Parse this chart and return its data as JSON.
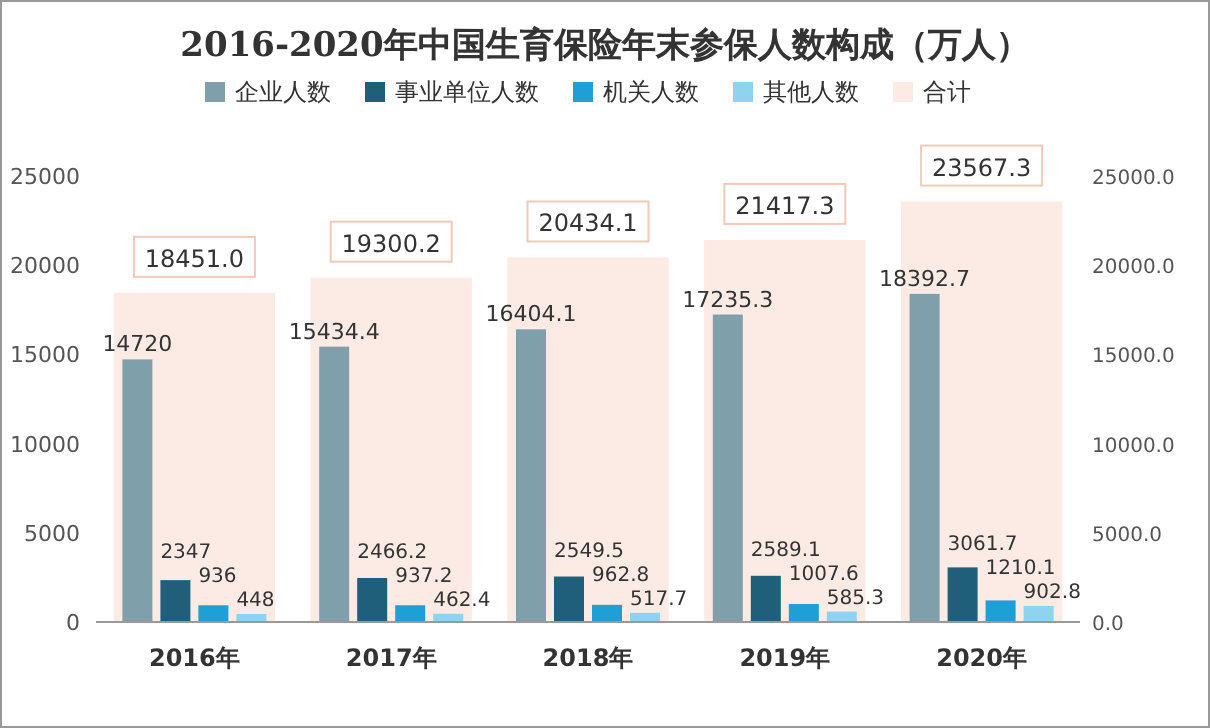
{
  "chart_data": {
    "type": "bar",
    "title": "2016-2020年中国生育保险年末参保人数构成（万人）",
    "categories": [
      "2016年",
      "2017年",
      "2018年",
      "2019年",
      "2020年"
    ],
    "series": [
      {
        "name": "企业人数",
        "color": "#7f9faa",
        "values": [
          14720,
          15434.4,
          16404.1,
          17235.3,
          18392.7
        ],
        "value_labels": [
          "14720",
          "15434.4",
          "16404.1",
          "17235.3",
          "18392.7"
        ]
      },
      {
        "name": "事业单位人数",
        "color": "#1f5f7a",
        "values": [
          2347,
          2466.2,
          2549.5,
          2589.1,
          3061.7
        ],
        "value_labels": [
          "2347",
          "2466.2",
          "2549.5",
          "2589.1",
          "3061.7"
        ]
      },
      {
        "name": "机关人数",
        "color": "#1e9fd6",
        "values": [
          936,
          937.2,
          962.8,
          1007.6,
          1210.1
        ],
        "value_labels": [
          "936",
          "937.2",
          "962.8",
          "1007.6",
          "1210.1"
        ]
      },
      {
        "name": "其他人数",
        "color": "#8fd3ee",
        "values": [
          448,
          462.4,
          517.7,
          585.3,
          902.8
        ],
        "value_labels": [
          "448",
          "462.4",
          "517.7",
          "585.3",
          "902.8"
        ]
      },
      {
        "name": "合计",
        "color": "#fcebe4",
        "axis": "y2",
        "values": [
          18451.0,
          19300.2,
          20434.1,
          21417.3,
          23567.3
        ],
        "value_labels": [
          "18451.0",
          "19300.2",
          "20434.1",
          "21417.3",
          "23567.3"
        ]
      }
    ],
    "ylim": [
      0,
      25000
    ],
    "yticks": [
      0,
      5000,
      10000,
      15000,
      20000,
      25000
    ],
    "y2lim": [
      0,
      25000
    ],
    "y2ticks": [
      {
        "value": 0,
        "label": "0.0"
      },
      {
        "value": 5000,
        "label": "5000.0"
      },
      {
        "value": 10000,
        "label": "10000.0"
      },
      {
        "value": 15000,
        "label": "15000.0"
      },
      {
        "value": 20000,
        "label": "20000.0"
      },
      {
        "value": 25000,
        "label": "25000.0"
      }
    ],
    "legend": "top",
    "grid": false
  }
}
